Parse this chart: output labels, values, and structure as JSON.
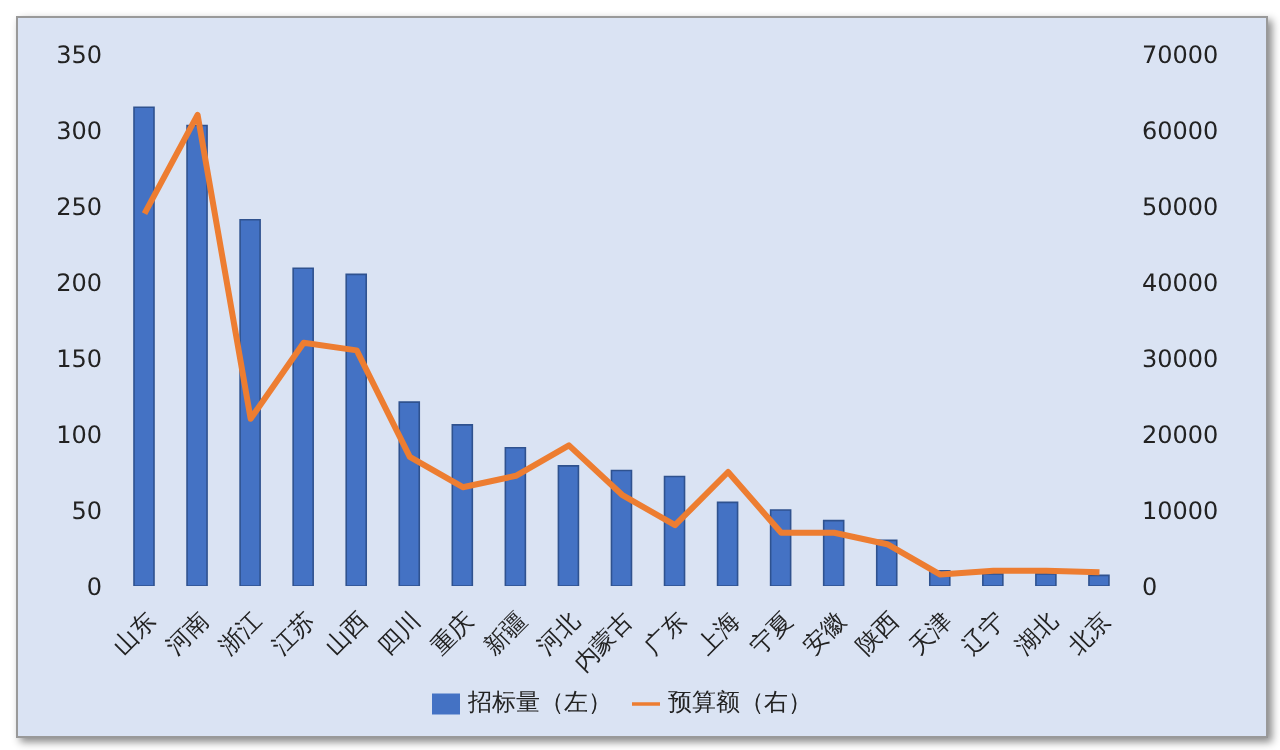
{
  "chart_data": {
    "type": "bar",
    "categories": [
      "山东",
      "河南",
      "浙江",
      "江苏",
      "山西",
      "四川",
      "重庆",
      "新疆",
      "河北",
      "内蒙古",
      "广东",
      "上海",
      "宁夏",
      "安徽",
      "陕西",
      "天津",
      "辽宁",
      "湖北",
      "北京"
    ],
    "series": [
      {
        "name": "招标量（左）",
        "color": "#4472c4",
        "values": [
          315,
          303,
          241,
          209,
          205,
          121,
          106,
          91,
          79,
          76,
          72,
          55,
          50,
          43,
          30,
          10,
          8,
          8,
          7
        ]
      },
      {
        "name": "预算额（右）",
        "type": "line",
        "axis": "y2",
        "color": "#ed7d31",
        "values": [
          49000,
          62000,
          22000,
          32000,
          31000,
          17000,
          13000,
          14500,
          18500,
          12000,
          8000,
          15000,
          7000,
          7000,
          5500,
          1500,
          2000,
          2000,
          1800
        ]
      }
    ],
    "ylim": [
      0,
      350
    ],
    "yticks": [
      0,
      50,
      100,
      150,
      200,
      250,
      300,
      350
    ],
    "y2lim": [
      0,
      70000
    ],
    "y2ticks": [
      0,
      10000,
      20000,
      30000,
      40000,
      50000,
      60000,
      70000
    ],
    "legend": "bottom",
    "marker": "none"
  }
}
